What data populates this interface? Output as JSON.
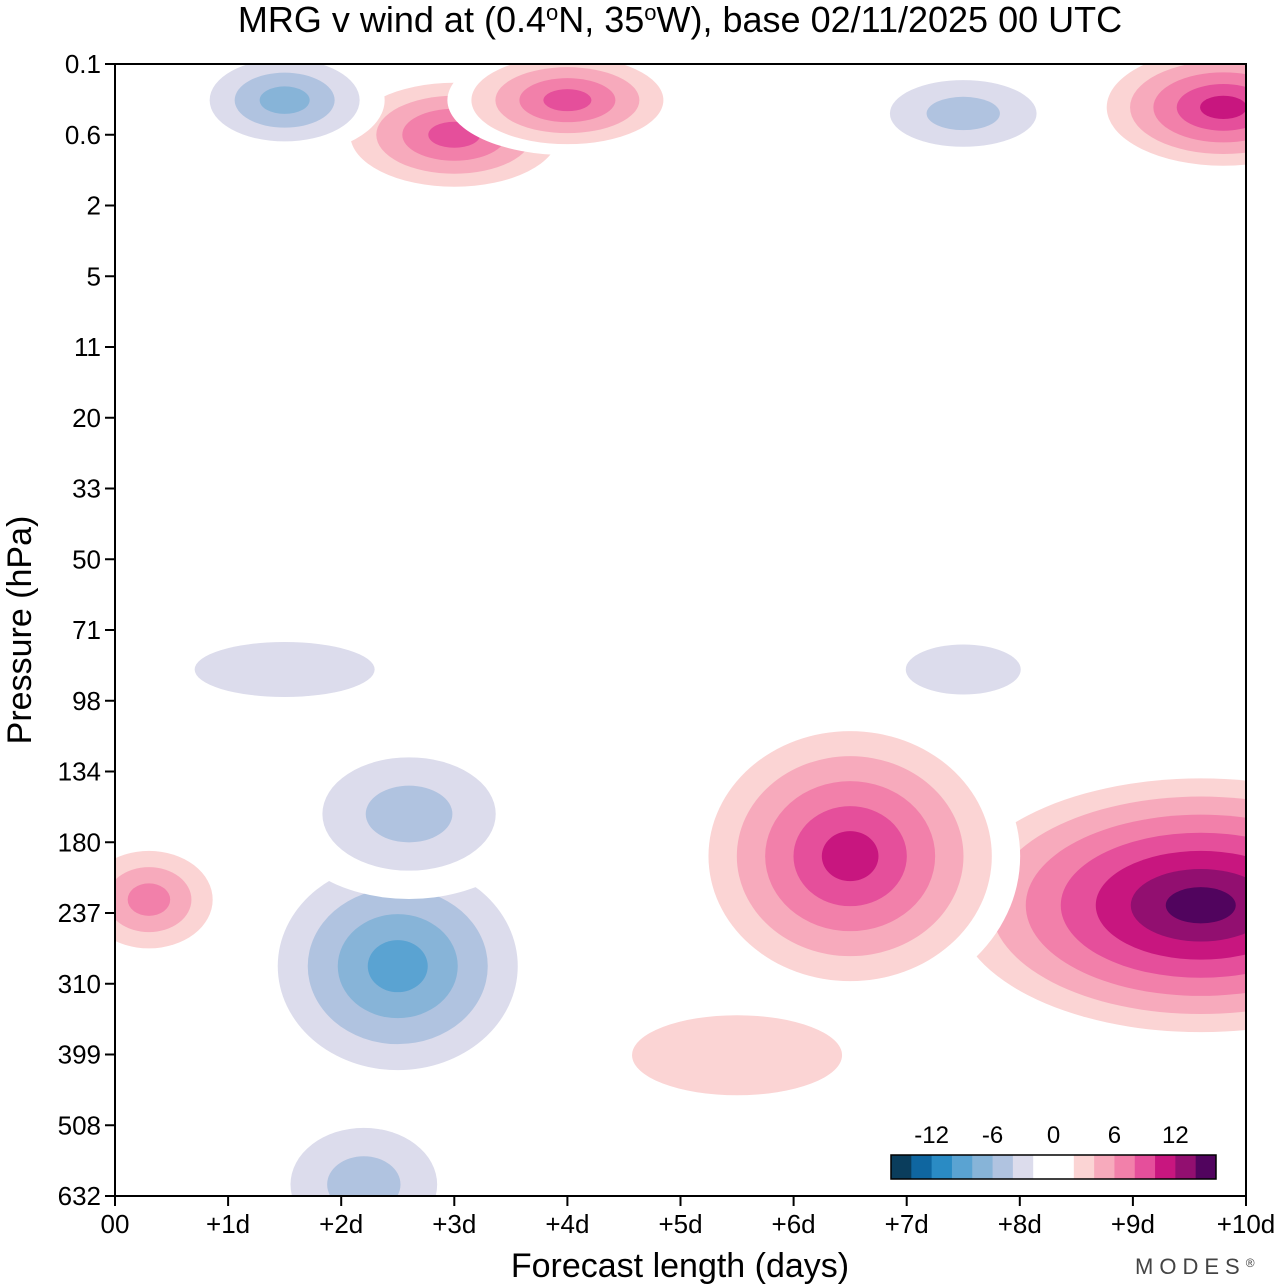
{
  "chart_data": {
    "type": "heatmap",
    "title_text": "MRG v wind at (0.4°N, 35°W),  base 02/11/2025  00 UTC",
    "title_parts": {
      "prefix": "MRG v wind at (0.4",
      "deg1": "o",
      "mid": "N, 35",
      "deg2": "o",
      "suffix": "W),  base 02/11/2025  00 UTC"
    },
    "xlabel": "Forecast length (days)",
    "ylabel": "Pressure (hPa)",
    "x_ticks": [
      "00",
      "+1d",
      "+2d",
      "+3d",
      "+4d",
      "+5d",
      "+6d",
      "+7d",
      "+8d",
      "+9d",
      "+10d"
    ],
    "x_range_days": [
      0,
      10
    ],
    "y_ticks": [
      "0.1",
      "0.6",
      "2",
      "5",
      "11",
      "20",
      "33",
      "50",
      "71",
      "98",
      "134",
      "180",
      "237",
      "310",
      "399",
      "508",
      "632"
    ],
    "colorbar": {
      "labels": [
        "-12",
        "-6",
        "0",
        "6",
        "12"
      ],
      "levels": [
        -16,
        -14,
        -12,
        -10,
        -8,
        -6,
        -4,
        -2,
        0,
        2,
        4,
        6,
        8,
        10,
        12,
        14,
        16
      ],
      "colors": [
        "#0a3d5c",
        "#0f66a0",
        "#2a8bc4",
        "#5aa3d2",
        "#87b4d8",
        "#b0c3e0",
        "#dcdcec",
        "#ffffff",
        "#ffffff",
        "#fbd4d4",
        "#f7aabc",
        "#f280aa",
        "#e54f9b",
        "#c8167f",
        "#920f70",
        "#51045e"
      ]
    },
    "features": [
      {
        "sign": "pos",
        "x": 9.6,
        "p": 230,
        "amplitude": 16,
        "note": "strong positive core near 237 hPa at +9.5d to +10d"
      },
      {
        "sign": "pos",
        "x": 6.5,
        "p": 190,
        "amplitude": 13
      },
      {
        "sign": "pos",
        "x": 0.3,
        "p": 225,
        "amplitude": 8
      },
      {
        "sign": "pos",
        "x": 5.5,
        "p": 400,
        "amplitude": 4
      },
      {
        "sign": "neg",
        "x": 2.5,
        "p": 290,
        "amplitude": -11
      },
      {
        "sign": "neg",
        "x": 2.6,
        "p": 160,
        "amplitude": -7
      },
      {
        "sign": "neg",
        "x": 2.2,
        "p": 610,
        "amplitude": -6
      },
      {
        "sign": "neg",
        "x": 1.5,
        "p": 85,
        "amplitude": -4
      },
      {
        "sign": "neg",
        "x": 7.5,
        "p": 85,
        "amplitude": -4
      },
      {
        "sign": "pos",
        "x": 3.0,
        "p": 0.6,
        "amplitude": 11
      },
      {
        "sign": "pos",
        "x": 4.0,
        "p": 0.25,
        "amplitude": 11
      },
      {
        "sign": "pos",
        "x": 9.8,
        "p": 0.3,
        "amplitude": 12
      },
      {
        "sign": "neg",
        "x": 1.5,
        "p": 0.25,
        "amplitude": -8
      },
      {
        "sign": "neg",
        "x": 7.5,
        "p": 0.35,
        "amplitude": -6
      }
    ]
  },
  "brand": "MODES",
  "brand_mark": "®"
}
